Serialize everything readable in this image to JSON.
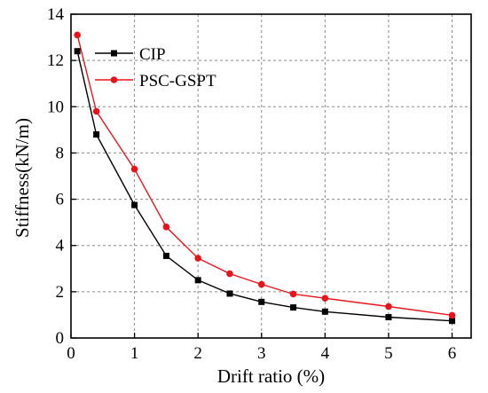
{
  "chart_data": {
    "type": "line",
    "xlabel": "Drift ratio (%)",
    "ylabel": "Stiffness(kN/m)",
    "xlim": [
      0,
      6.3
    ],
    "ylim": [
      0,
      14
    ],
    "x_ticks": [
      0,
      1,
      2,
      3,
      4,
      5,
      6
    ],
    "y_ticks": [
      0,
      2,
      4,
      6,
      8,
      10,
      12,
      14
    ],
    "x_tick_labels": [
      "0",
      "1",
      "2",
      "3",
      "4",
      "5",
      "6"
    ],
    "y_tick_labels": [
      "0",
      "2",
      "4",
      "6",
      "8",
      "10",
      "12",
      "14"
    ],
    "grid": true,
    "legend_position": "top-left",
    "series": [
      {
        "name": "CIP",
        "color": "#000000",
        "marker": "square",
        "x": [
          0.1,
          0.4,
          1.0,
          1.5,
          2.0,
          2.5,
          3.0,
          3.5,
          4.0,
          5.0,
          6.0
        ],
        "y": [
          12.4,
          8.8,
          5.75,
          3.55,
          2.5,
          1.92,
          1.56,
          1.32,
          1.14,
          0.9,
          0.74
        ]
      },
      {
        "name": "PSC-GSPT",
        "color": "#e8141b",
        "marker": "circle",
        "x": [
          0.1,
          0.4,
          1.0,
          1.5,
          2.0,
          2.5,
          3.0,
          3.5,
          4.0,
          5.0,
          6.0
        ],
        "y": [
          13.1,
          9.8,
          7.3,
          4.8,
          3.45,
          2.78,
          2.32,
          1.9,
          1.72,
          1.36,
          0.98
        ]
      }
    ]
  }
}
